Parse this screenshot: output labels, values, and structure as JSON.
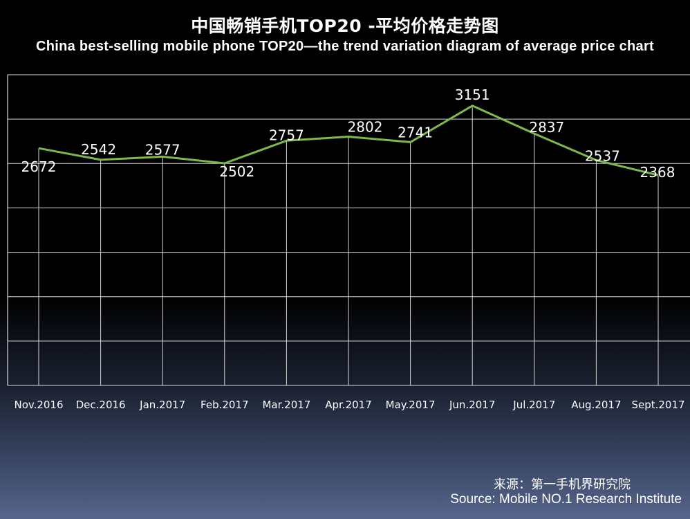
{
  "header": {
    "title_cn": "中国畅销手机TOP20 -平均价格走势图",
    "title_en": "China best-selling mobile phone TOP20—the trend variation diagram of average price chart"
  },
  "chart_data": {
    "type": "line",
    "categories": [
      "Nov.2016",
      "Dec.2016",
      "Jan.2017",
      "Feb.2017",
      "Mar.2017",
      "Apr.2017",
      "May.2017",
      "Jun.2017",
      "Jul.2017",
      "Aug.2017",
      "Sept.2017"
    ],
    "series": [
      {
        "name": "Average price",
        "values": [
          2672,
          2542,
          2577,
          2502,
          2757,
          2802,
          2741,
          3151,
          2837,
          2537,
          2368
        ],
        "color": "#7db84a"
      }
    ],
    "ylim": [
      0,
      3500
    ],
    "y_tick_step": 500,
    "grid": true,
    "y_tick_labels_visible": false,
    "axis_color": "#ffffff",
    "title": "中国畅销手机TOP20 -平均价格走势图"
  },
  "footer": {
    "source_cn": "来源：第一手机界研究院",
    "source_en": "Source: Mobile NO.1 Research Institute"
  }
}
